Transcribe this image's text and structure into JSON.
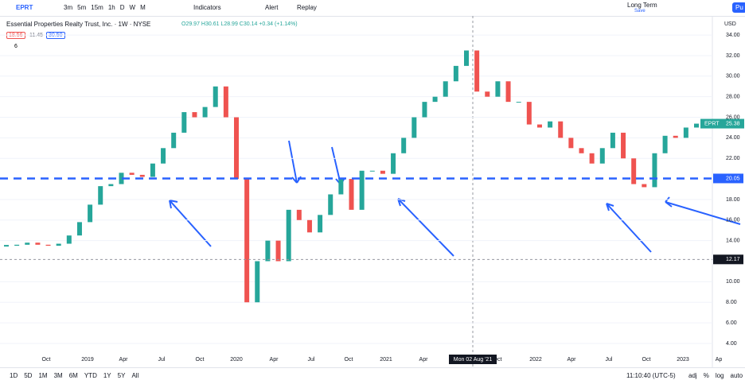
{
  "toolbar": {
    "symbol": "EPRT",
    "intervals": [
      "3m",
      "5m",
      "15m",
      "1h",
      "D",
      "W",
      "M"
    ],
    "indicators": "Indicators",
    "alert": "Alert",
    "replay": "Replay",
    "layout": "Long Term",
    "save": "Save",
    "publish": "Pu"
  },
  "legend": {
    "title": "Essential Properties Realty Trust, Inc. · 1W · NYSE",
    "ohlc": "O29.97 H30.61 L28.99 C30.14 +0.34 (+1.14%)",
    "boxes": [
      "18.56",
      "11.45",
      "30.50"
    ],
    "count": "6"
  },
  "chart_data": {
    "type": "candlestick",
    "currency": "USD",
    "symbol_tag": "EPRT",
    "values": [
      13.5,
      13.6,
      13.8,
      13.6,
      13.5,
      13.7,
      14.5,
      15.8,
      17.5,
      19.3,
      19.5,
      20.6,
      20.4,
      20.2,
      21.5,
      23,
      24.5,
      26.5,
      26,
      27,
      29,
      26,
      20,
      8,
      12,
      14,
      12,
      17,
      16,
      14.8,
      16.5,
      18.5,
      20,
      17,
      20.8,
      20.8,
      20.5,
      22.5,
      24,
      26,
      27.5,
      28,
      29.5,
      31,
      32.5,
      28.5,
      28,
      29.5,
      27.5,
      27.5,
      25.3,
      25,
      25.6,
      24,
      23,
      22.5,
      21.5,
      23,
      24.5,
      22,
      19.5,
      19.2,
      22.5,
      24.2,
      24,
      25,
      25.38
    ],
    "up_color": "#26a69a",
    "down_color": "#ef5350",
    "ylim": [
      1.83,
      35.09
    ],
    "yticks": [
      {
        "value": 4,
        "label": "4.00"
      },
      {
        "value": 6,
        "label": "6.00"
      },
      {
        "value": 8,
        "label": "8.00"
      },
      {
        "value": 10,
        "label": "10.00"
      },
      {
        "value": 14,
        "label": "14.00"
      },
      {
        "value": 16,
        "label": "16.00"
      },
      {
        "value": 18,
        "label": "18.00"
      },
      {
        "value": 22,
        "label": "22.00"
      },
      {
        "value": 24,
        "label": "24.00"
      },
      {
        "value": 26,
        "label": "26.00"
      },
      {
        "value": 28,
        "label": "28.00"
      },
      {
        "value": 30,
        "label": "30.00"
      },
      {
        "value": 32,
        "label": "32.00"
      },
      {
        "value": 34,
        "label": "34.00"
      }
    ],
    "last_price": {
      "value": 25.38,
      "label": "25.38"
    },
    "level_line": {
      "value": 20.05,
      "label": "20.05"
    },
    "crosshair_price": {
      "value": 12.17,
      "label": "12.17"
    },
    "crosshair_date": "Mon 02 Aug '21",
    "xticks": [
      "Oct",
      "2019",
      "Apr",
      "Jul",
      "Oct",
      "2020",
      "Apr",
      "Jul",
      "Oct",
      "2021",
      "Apr",
      "Oct",
      "2022",
      "Apr",
      "Jul",
      "Oct",
      "2023",
      "Ap"
    ]
  },
  "bottom": {
    "ranges": [
      "1D",
      "5D",
      "1M",
      "3M",
      "6M",
      "YTD",
      "1Y",
      "5Y",
      "All"
    ],
    "time": "11:10:40 (UTC-5)",
    "options": [
      "adj",
      "%",
      "log",
      "auto"
    ]
  }
}
